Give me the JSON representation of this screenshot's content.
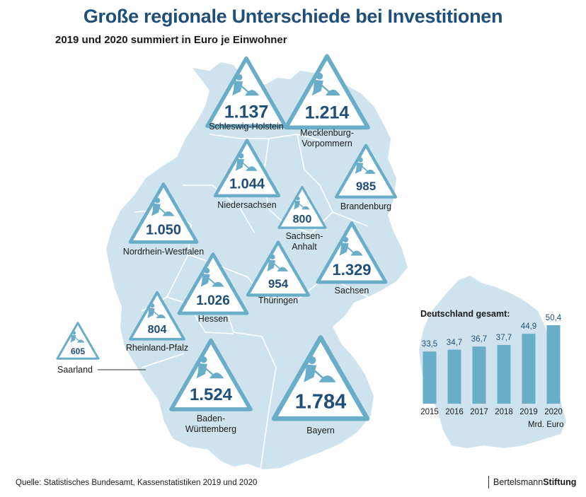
{
  "title": "Große regionale Unterschiede bei Investitionen",
  "subtitle": "2019 und 2020 summiert in Euro je Einwohner",
  "colors": {
    "title": "#1f4e79",
    "map": "#cfe3ee",
    "sign_stroke": "#6aadc8",
    "bar": "#6aadc8",
    "value": "#1f4e79"
  },
  "icons": {
    "sign": "construction-worker-icon"
  },
  "states": [
    {
      "name": "Schleswig-Holstein",
      "value": "1.137"
    },
    {
      "name": "Mecklenburg-\nVorpommern",
      "value": "1.214"
    },
    {
      "name": "Niedersachsen",
      "value": "1.044"
    },
    {
      "name": "Brandenburg",
      "value": "985"
    },
    {
      "name": "Sachsen-\nAnhalt",
      "value": "800"
    },
    {
      "name": "Nordrhein-Westfalen",
      "value": "1.050"
    },
    {
      "name": "Thüringen",
      "value": "954"
    },
    {
      "name": "Sachsen",
      "value": "1.329"
    },
    {
      "name": "Hessen",
      "value": "1.026"
    },
    {
      "name": "Rheinland-Pfalz",
      "value": "804"
    },
    {
      "name": "Saarland",
      "value": "605"
    },
    {
      "name": "Baden-\nWürttemberg",
      "value": "1.524"
    },
    {
      "name": "Bayern",
      "value": "1.784"
    }
  ],
  "chart_data": {
    "type": "bar",
    "title": "Deutschland gesamt:",
    "categories": [
      "2015",
      "2016",
      "2017",
      "2018",
      "2019",
      "2020"
    ],
    "values": [
      33.5,
      34.7,
      36.7,
      37.7,
      44.9,
      50.4
    ],
    "value_labels": [
      "33,5",
      "34,7",
      "36,7",
      "37,7",
      "44,9",
      "50,4"
    ],
    "unit": "Mrd. Euro",
    "ylim": [
      0,
      50.4
    ]
  },
  "source": "Quelle: Statistisches Bundesamt, Kassenstatistiken 2019 und 2020",
  "logo": {
    "part1": "Bertelsmann",
    "part2": "Stiftung"
  }
}
